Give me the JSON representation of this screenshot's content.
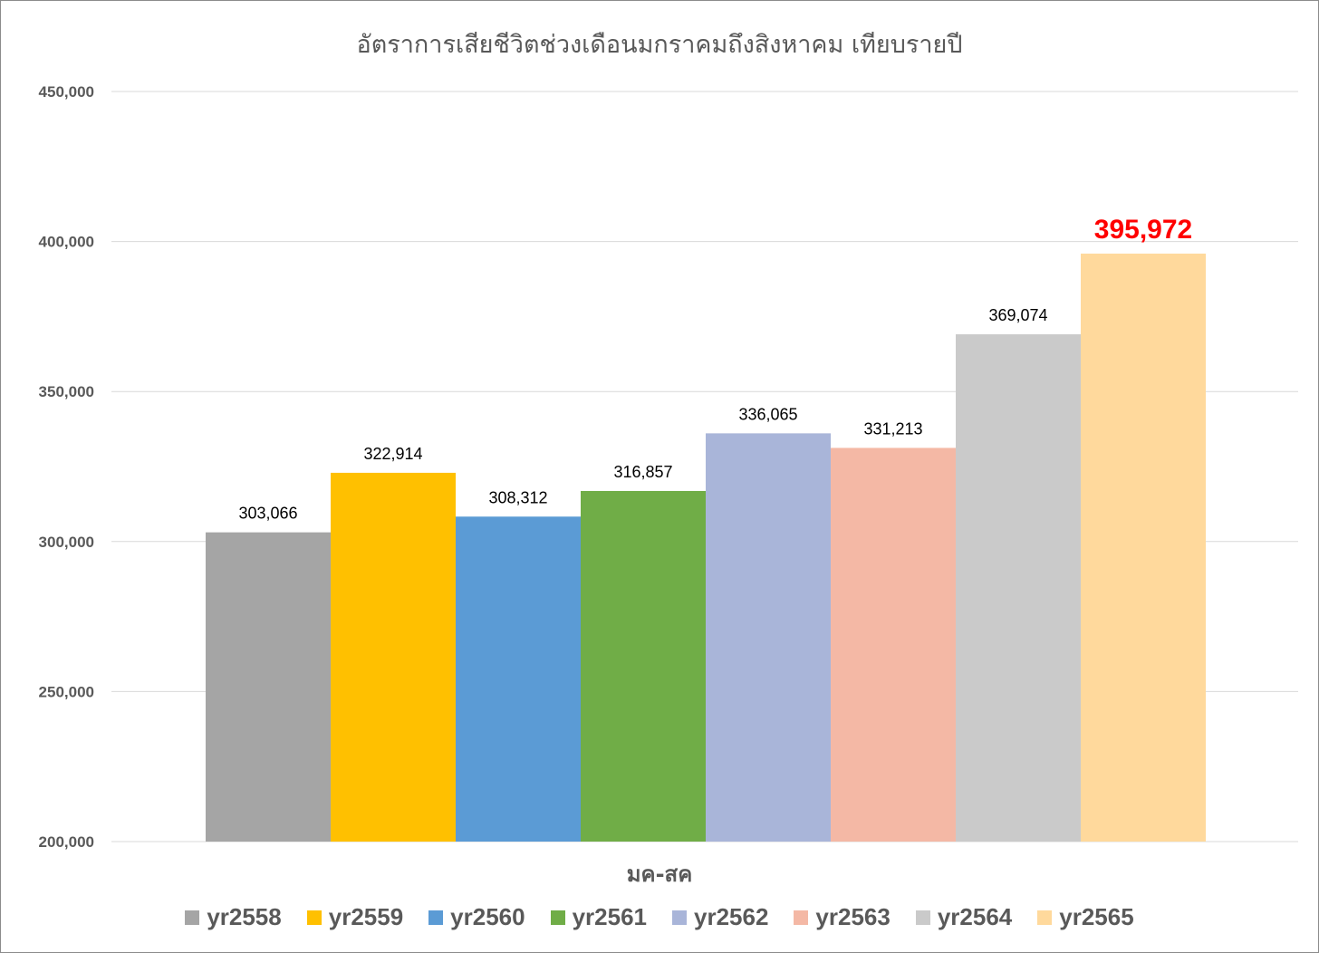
{
  "chart_data": {
    "type": "bar",
    "title": "อัตราการเสียชีวิตช่วงเดือนมกราคมถึงสิงหาคม เทียบรายปี",
    "xlabel": "มค-สค",
    "ylabel": "",
    "categories": [
      "มค-สค"
    ],
    "ylim": [
      200000,
      450000
    ],
    "yticks": [
      "200,000",
      "250,000",
      "300,000",
      "350,000",
      "400,000",
      "450,000"
    ],
    "grid": true,
    "legend_position": "bottom",
    "highlight_series": "yr2565",
    "series": [
      {
        "name": "yr2558",
        "values": [
          303066
        ],
        "label": "303,066",
        "color": "#a5a5a5"
      },
      {
        "name": "yr2559",
        "values": [
          322914
        ],
        "label": "322,914",
        "color": "#ffc000"
      },
      {
        "name": "yr2560",
        "values": [
          308312
        ],
        "label": "308,312",
        "color": "#5b9bd5"
      },
      {
        "name": "yr2561",
        "values": [
          316857
        ],
        "label": "316,857",
        "color": "#70ad47"
      },
      {
        "name": "yr2562",
        "values": [
          336065
        ],
        "label": "336,065",
        "color": "#a9b5d9"
      },
      {
        "name": "yr2563",
        "values": [
          331213
        ],
        "label": "331,213",
        "color": "#f4b8a5"
      },
      {
        "name": "yr2564",
        "values": [
          369074
        ],
        "label": "369,074",
        "color": "#cacaca"
      },
      {
        "name": "yr2565",
        "values": [
          395972
        ],
        "label": "395,972",
        "color": "#ffd99c"
      }
    ]
  }
}
